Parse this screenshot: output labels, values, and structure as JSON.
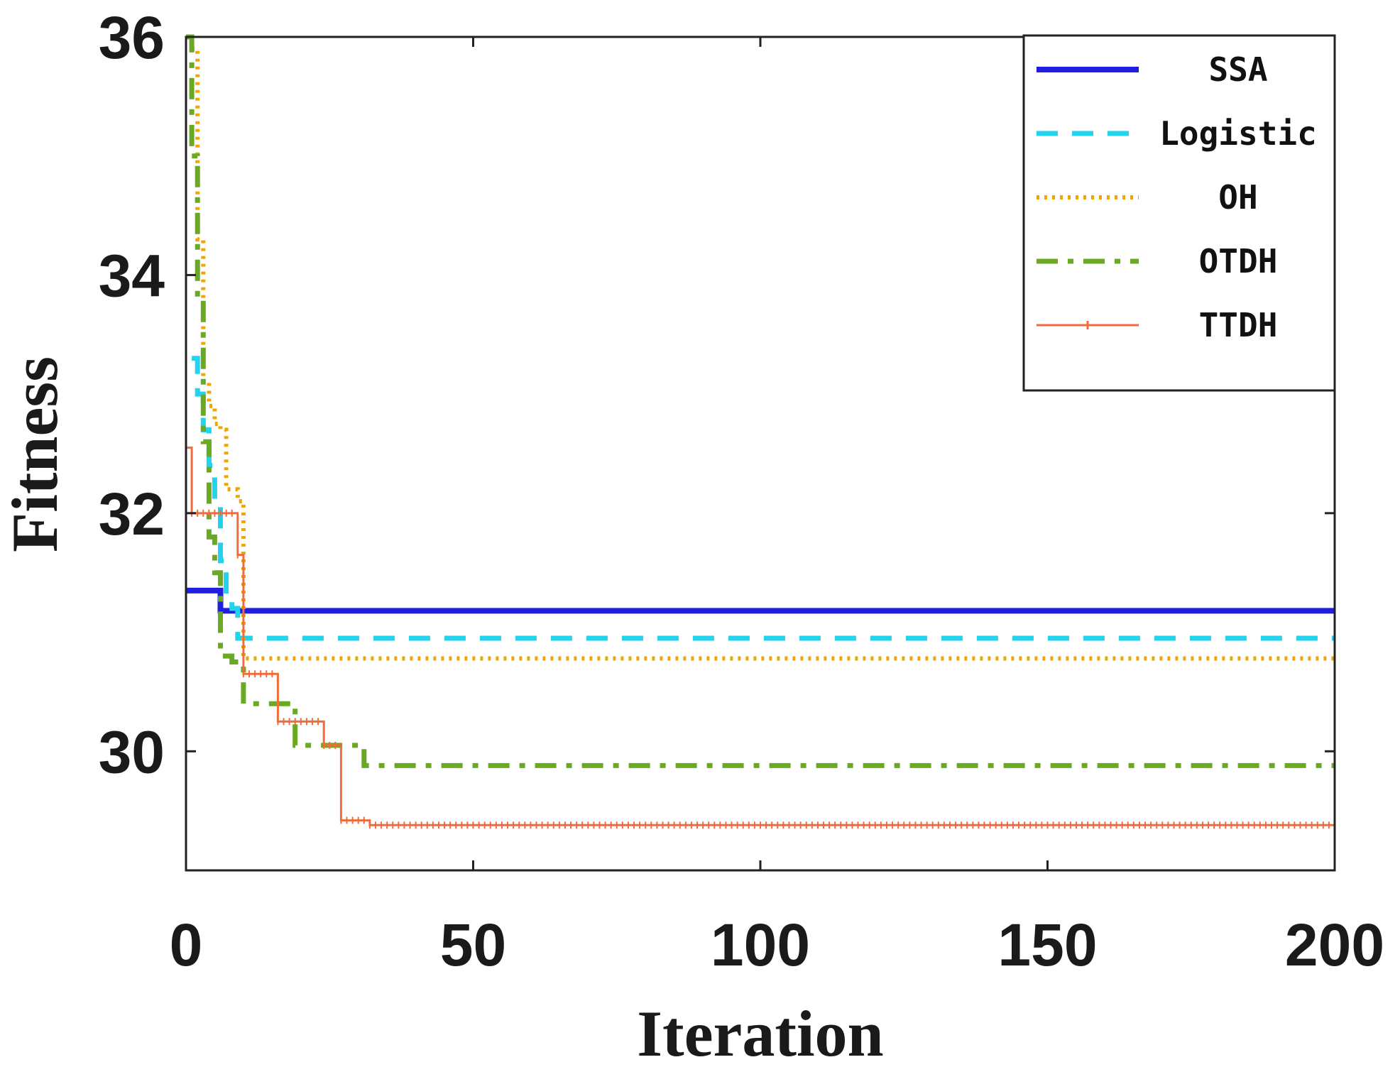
{
  "chart_data": {
    "type": "line",
    "title": "",
    "xlabel": "Iteration",
    "ylabel": "Fitness",
    "xlim": [
      0,
      200
    ],
    "ylim": [
      29.0,
      36.0
    ],
    "xticks": [
      0,
      50,
      100,
      150,
      200
    ],
    "yticks": [
      30,
      32,
      34,
      36
    ],
    "xtick_labels": [
      "0",
      "50",
      "100",
      "150",
      "200"
    ],
    "ytick_labels": [
      "30",
      "32",
      "34",
      "36"
    ],
    "grid": false,
    "legend_position": "top-right",
    "series": [
      {
        "name": "SSA",
        "color": "#1f1fe0",
        "style": "solid",
        "points": [
          [
            0,
            31.35
          ],
          [
            5,
            31.35
          ],
          [
            6,
            31.18
          ],
          [
            200,
            31.18
          ]
        ]
      },
      {
        "name": "Logistic",
        "color": "#22d3ee",
        "style": "dashed",
        "points": [
          [
            1,
            33.3
          ],
          [
            2,
            33.0
          ],
          [
            3,
            32.7
          ],
          [
            4,
            32.4
          ],
          [
            5,
            32.1
          ],
          [
            6,
            31.6
          ],
          [
            7,
            31.3
          ],
          [
            8,
            31.2
          ],
          [
            9,
            30.95
          ],
          [
            200,
            30.95
          ]
        ]
      },
      {
        "name": "OH",
        "color": "#f0a500",
        "style": "dotted",
        "points": [
          [
            1,
            35.9
          ],
          [
            2,
            34.3
          ],
          [
            3,
            33.1
          ],
          [
            4,
            32.9
          ],
          [
            5,
            32.75
          ],
          [
            6,
            32.7
          ],
          [
            7,
            32.2
          ],
          [
            9,
            32.1
          ],
          [
            10,
            30.78
          ],
          [
            200,
            30.78
          ]
        ]
      },
      {
        "name": "OTDH",
        "color": "#6aaa22",
        "style": "dashdot",
        "points": [
          [
            0,
            36.0
          ],
          [
            1,
            35.0
          ],
          [
            2,
            33.8
          ],
          [
            3,
            32.6
          ],
          [
            4,
            31.8
          ],
          [
            5,
            31.5
          ],
          [
            6,
            30.8
          ],
          [
            8,
            30.75
          ],
          [
            10,
            30.4
          ],
          [
            18,
            30.4
          ],
          [
            19,
            30.05
          ],
          [
            30,
            30.05
          ],
          [
            31,
            29.88
          ],
          [
            200,
            29.88
          ]
        ]
      },
      {
        "name": "TTDH",
        "color": "#f26b3a",
        "style": "solid-marker",
        "points": [
          [
            0,
            32.55
          ],
          [
            1,
            32.0
          ],
          [
            8,
            32.0
          ],
          [
            9,
            31.65
          ],
          [
            10,
            30.65
          ],
          [
            15,
            30.65
          ],
          [
            16,
            30.25
          ],
          [
            23,
            30.25
          ],
          [
            24,
            30.05
          ],
          [
            26,
            30.05
          ],
          [
            27,
            29.42
          ],
          [
            31,
            29.42
          ],
          [
            32,
            29.38
          ],
          [
            200,
            29.38
          ]
        ]
      }
    ]
  }
}
